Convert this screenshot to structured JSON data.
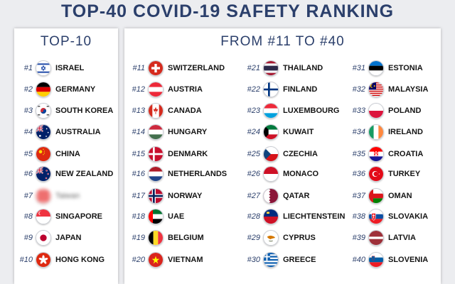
{
  "title": "TOP-40 COVID-19 SAFETY RANKING",
  "top10_heading": "TOP-10",
  "rest_heading": "FROM #11 TO #40",
  "columns": [
    [
      {
        "rank": "#1",
        "name": "ISRAEL",
        "flag": "israel-flag-icon"
      },
      {
        "rank": "#2",
        "name": "GERMANY",
        "flag": "germany-flag-icon"
      },
      {
        "rank": "#3",
        "name": "SOUTH KOREA",
        "flag": "south-korea-flag-icon"
      },
      {
        "rank": "#4",
        "name": "AUSTRALIA",
        "flag": "australia-flag-icon"
      },
      {
        "rank": "#5",
        "name": "CHINA",
        "flag": "china-flag-icon"
      },
      {
        "rank": "#6",
        "name": "NEW ZEALAND",
        "flag": "new-zealand-flag-icon"
      },
      {
        "rank": "#7",
        "name": "Taiwan",
        "flag": "blurred-flag-icon",
        "blurred": true
      },
      {
        "rank": "#8",
        "name": "SINGAPORE",
        "flag": "singapore-flag-icon"
      },
      {
        "rank": "#9",
        "name": "JAPAN",
        "flag": "japan-flag-icon"
      },
      {
        "rank": "#10",
        "name": "HONG KONG",
        "flag": "hong-kong-flag-icon"
      }
    ],
    [
      {
        "rank": "#11",
        "name": "SWITZERLAND",
        "flag": "switzerland-flag-icon"
      },
      {
        "rank": "#12",
        "name": "AUSTRIA",
        "flag": "austria-flag-icon"
      },
      {
        "rank": "#13",
        "name": "CANADA",
        "flag": "canada-flag-icon"
      },
      {
        "rank": "#14",
        "name": "HUNGARY",
        "flag": "hungary-flag-icon"
      },
      {
        "rank": "#15",
        "name": "DENMARK",
        "flag": "denmark-flag-icon"
      },
      {
        "rank": "#16",
        "name": "NETHERLANDS",
        "flag": "netherlands-flag-icon"
      },
      {
        "rank": "#17",
        "name": "NORWAY",
        "flag": "norway-flag-icon"
      },
      {
        "rank": "#18",
        "name": "UAE",
        "flag": "uae-flag-icon"
      },
      {
        "rank": "#19",
        "name": "BELGIUM",
        "flag": "belgium-flag-icon"
      },
      {
        "rank": "#20",
        "name": "VIETNAM",
        "flag": "vietnam-flag-icon"
      }
    ],
    [
      {
        "rank": "#21",
        "name": "THAILAND",
        "flag": "thailand-flag-icon"
      },
      {
        "rank": "#22",
        "name": "FINLAND",
        "flag": "finland-flag-icon"
      },
      {
        "rank": "#23",
        "name": "LUXEMBOURG",
        "flag": "luxembourg-flag-icon"
      },
      {
        "rank": "#24",
        "name": "KUWAIT",
        "flag": "kuwait-flag-icon"
      },
      {
        "rank": "#25",
        "name": "CZECHIA",
        "flag": "czechia-flag-icon"
      },
      {
        "rank": "#26",
        "name": "MONACO",
        "flag": "monaco-flag-icon"
      },
      {
        "rank": "#27",
        "name": "QATAR",
        "flag": "qatar-flag-icon"
      },
      {
        "rank": "#28",
        "name": "LIECHTENSTEIN",
        "flag": "liechtenstein-flag-icon"
      },
      {
        "rank": "#29",
        "name": "CYPRUS",
        "flag": "cyprus-flag-icon"
      },
      {
        "rank": "#30",
        "name": "GREECE",
        "flag": "greece-flag-icon"
      }
    ],
    [
      {
        "rank": "#31",
        "name": "ESTONIA",
        "flag": "estonia-flag-icon"
      },
      {
        "rank": "#32",
        "name": "MALAYSIA",
        "flag": "malaysia-flag-icon"
      },
      {
        "rank": "#33",
        "name": "POLAND",
        "flag": "poland-flag-icon"
      },
      {
        "rank": "#34",
        "name": "IRELAND",
        "flag": "ireland-flag-icon"
      },
      {
        "rank": "#35",
        "name": "CROATIA",
        "flag": "croatia-flag-icon"
      },
      {
        "rank": "#36",
        "name": "TURKEY",
        "flag": "turkey-flag-icon"
      },
      {
        "rank": "#37",
        "name": "OMAN",
        "flag": "oman-flag-icon"
      },
      {
        "rank": "#38",
        "name": "SLOVAKIA",
        "flag": "slovakia-flag-icon"
      },
      {
        "rank": "#39",
        "name": "LATVIA",
        "flag": "latvia-flag-icon"
      },
      {
        "rank": "#40",
        "name": "SLOVENIA",
        "flag": "slovenia-flag-icon"
      }
    ]
  ]
}
